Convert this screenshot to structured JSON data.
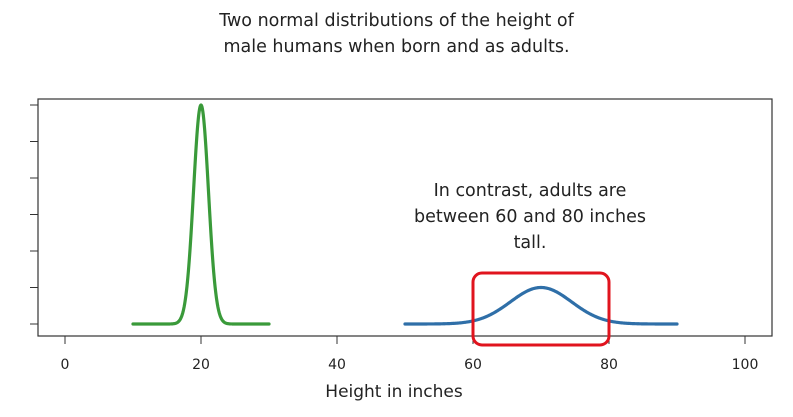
{
  "chart_data": {
    "type": "line",
    "title_lines": [
      "Two normal distributions of the height of",
      "male humans when born and as adults."
    ],
    "xlabel": "Height in inches",
    "ylabel": "",
    "xlim": [
      0,
      100
    ],
    "ylim": [
      0,
      1.2
    ],
    "x_ticks": [
      0,
      20,
      40,
      60,
      80,
      100
    ],
    "y_ticks": [
      0,
      0.2,
      0.4,
      0.6,
      0.8,
      1.0,
      1.2
    ],
    "y_tick_labels_shown": false,
    "grid": false,
    "series": [
      {
        "color": "#3a9a3a",
        "x_range": [
          10,
          30
        ],
        "mean": 20,
        "sd": 1.1,
        "peak": 1.2
      },
      {
        "color": "#2f6fa8",
        "x_range": [
          50,
          90
        ],
        "mean": 70,
        "sd": 4.5,
        "peak": 0.2
      }
    ],
    "highlight_box": {
      "x_range": [
        60,
        80
      ],
      "color": "#e0141e"
    },
    "annotation_lines": [
      "In contrast, adults are",
      "between 60 and 80 inches",
      "tall."
    ]
  }
}
